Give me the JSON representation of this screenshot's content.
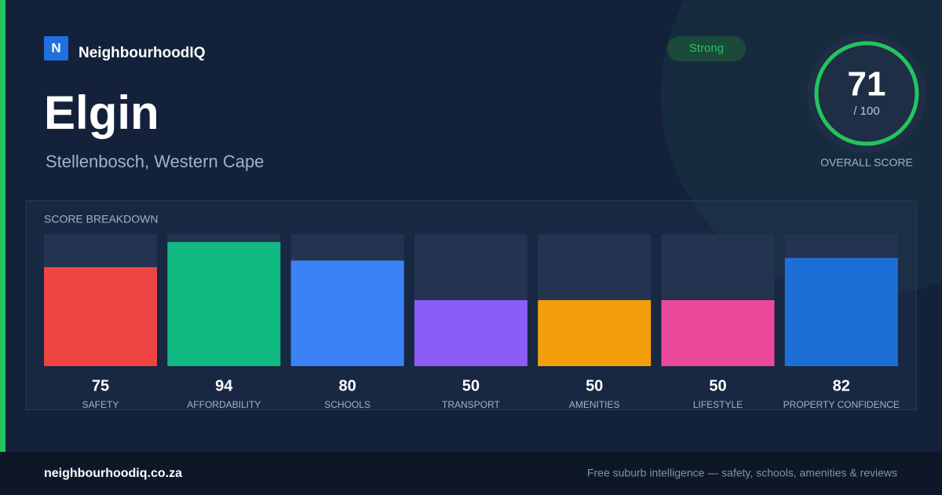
{
  "brand": {
    "logo": "N",
    "name": "NeighbourhoodIQ"
  },
  "suburb": "Elgin",
  "location": "Stellenbosch, Western Cape",
  "badge": "Strong",
  "overall": {
    "score": 71,
    "max": {
      "value": 100,
      "label": "/ 100"
    },
    "caption": "OVERALL SCORE"
  },
  "chart_data": {
    "type": "bar",
    "title": "SCORE BREAKDOWN",
    "categories": [
      "SAFETY",
      "AFFORDABILITY",
      "SCHOOLS",
      "TRANSPORT",
      "AMENITIES",
      "LIFESTYLE",
      "PROPERTY CONFIDENCE"
    ],
    "values": [
      75,
      94,
      80,
      50,
      50,
      50,
      82
    ],
    "colors": [
      "#ef4444",
      "#10b981",
      "#3b82f6",
      "#8b5cf6",
      "#f59e0b",
      "#ec4899",
      "#1d6fd8"
    ],
    "ylim": [
      0,
      100
    ]
  },
  "footer": {
    "domain": "neighbourhoodiq.co.za",
    "tagline": "Free suburb intelligence — safety, schools, amenities & reviews"
  }
}
